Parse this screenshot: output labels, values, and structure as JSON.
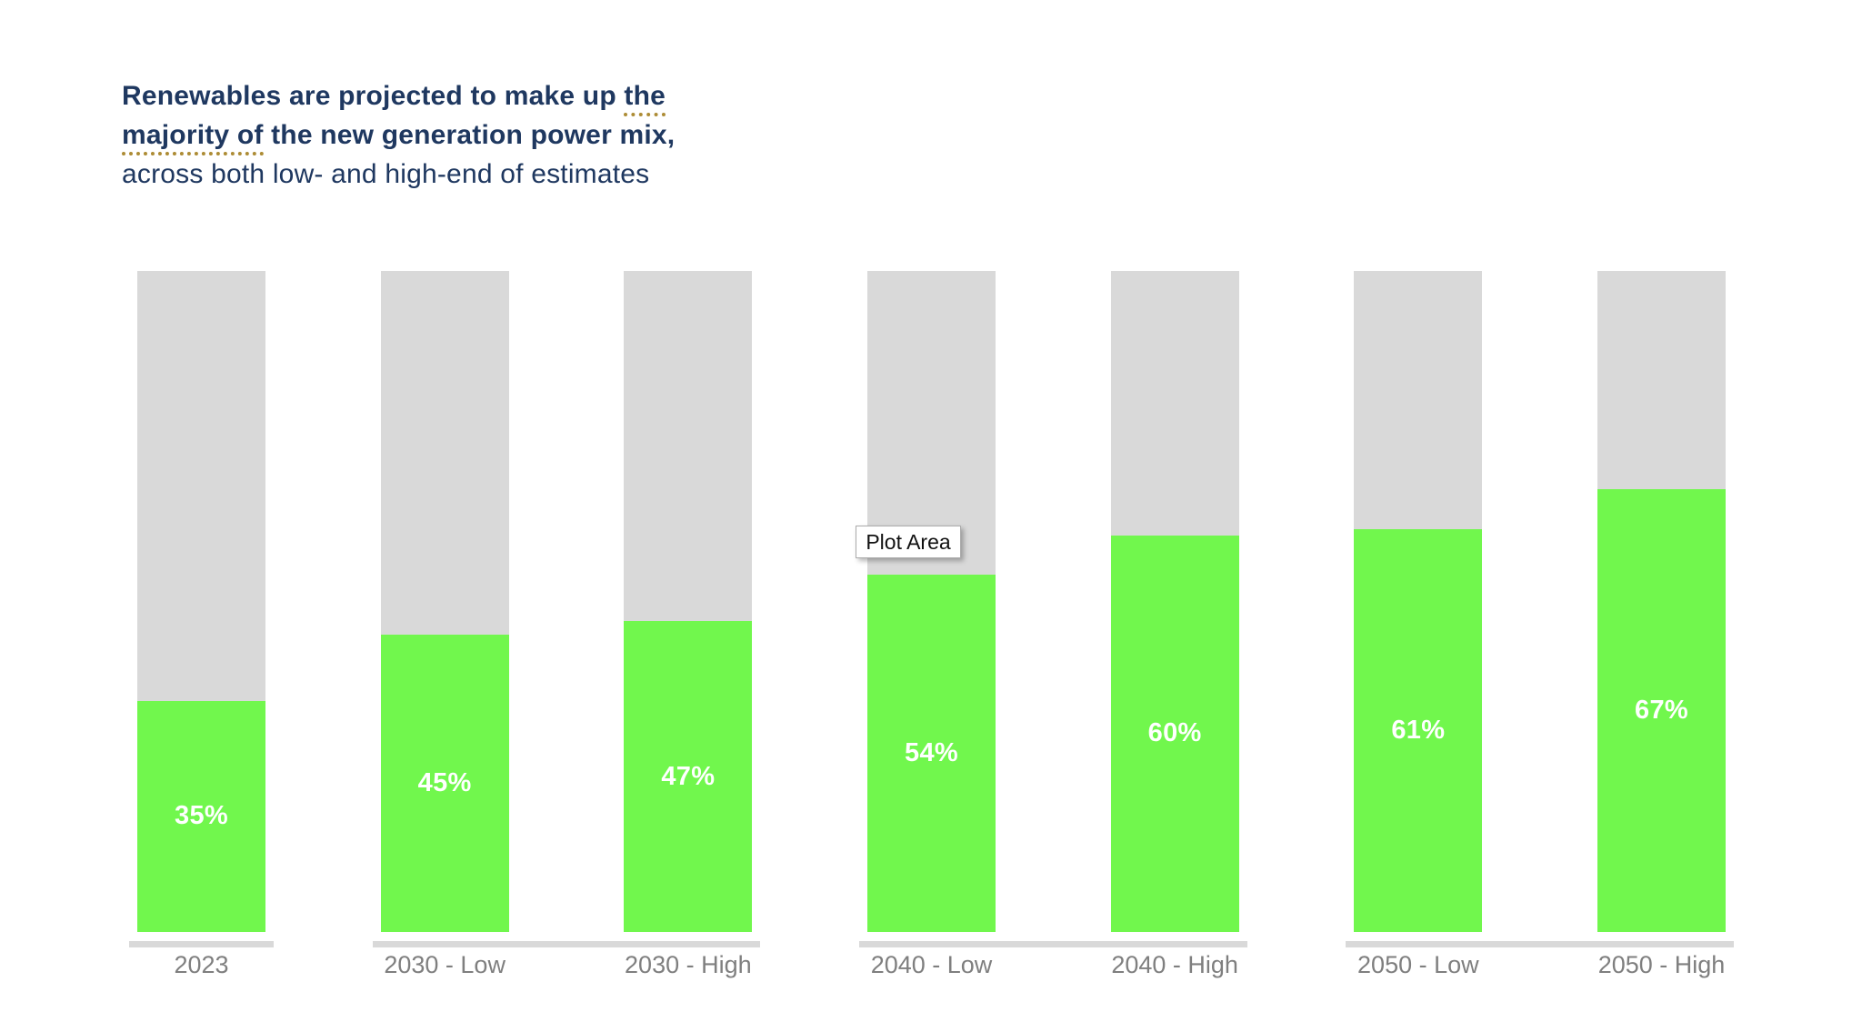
{
  "title": {
    "line1_pre": "Renewables are projected to make up ",
    "line1_marked": "the",
    "line2_marked": "majority of",
    "line2_post": " the new generation power mix,",
    "line3": "across both low- and high-end of estimates",
    "text_color": "#1f3860",
    "marked_underline_color": "#ad8c35"
  },
  "tooltip": {
    "label": "Plot Area"
  },
  "chart_data": {
    "type": "bar",
    "subtype": "stacked-percentage-column",
    "title": "Renewables are projected to make up the majority of the new generation power mix, across both low- and high-end of estimates",
    "categories": [
      "2023",
      "2030 - Low",
      "2030 - High",
      "2040 - Low",
      "2040 - High",
      "2050 - Low",
      "2050 - High"
    ],
    "values": [
      35,
      45,
      47,
      54,
      60,
      61,
      67
    ],
    "value_labels": [
      "35%",
      "45%",
      "47%",
      "54%",
      "60%",
      "61%",
      "67%"
    ],
    "remainder_values": [
      65,
      55,
      53,
      46,
      40,
      39,
      33
    ],
    "ylim": [
      0,
      100
    ],
    "axis_groups": [
      [
        0
      ],
      [
        1,
        2
      ],
      [
        3,
        4
      ],
      [
        5,
        6
      ]
    ],
    "legend": "none",
    "gridlines": "none",
    "xlabel": "",
    "ylabel": "",
    "colors": {
      "filled": "#71f74d",
      "remainder": "#d9d9d9",
      "baseline": "#d9d9d9",
      "axis_label": "#7f7f7f",
      "value_label": "#ffffff"
    }
  }
}
